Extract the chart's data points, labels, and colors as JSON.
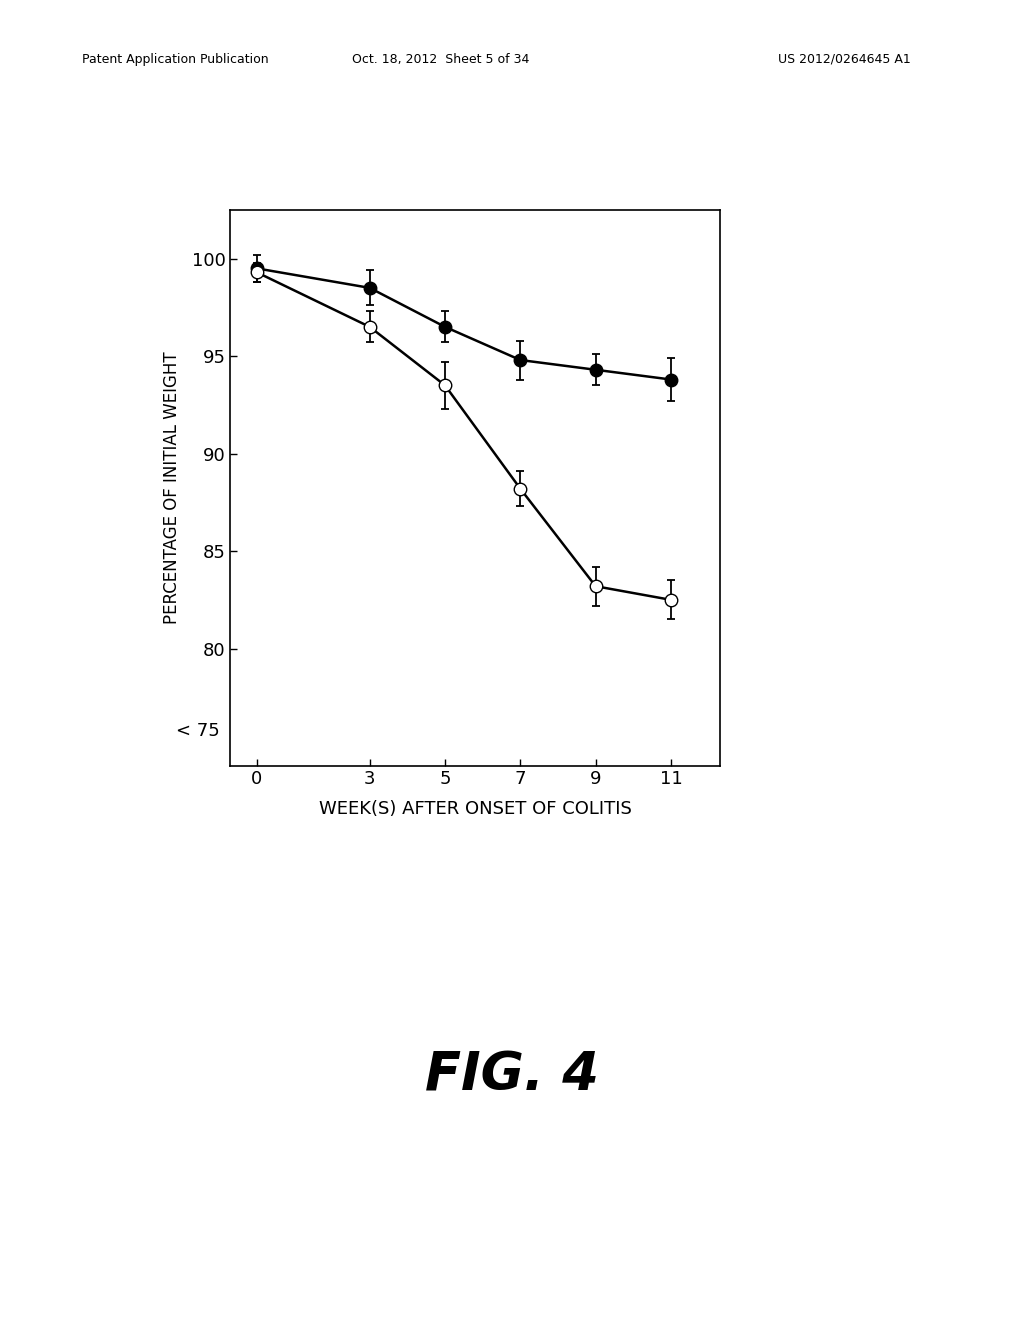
{
  "x": [
    0,
    3,
    5,
    7,
    9,
    11
  ],
  "black_y": [
    99.5,
    98.5,
    96.5,
    94.8,
    94.3,
    93.8
  ],
  "black_err": [
    0.7,
    0.9,
    0.8,
    1.0,
    0.8,
    1.1
  ],
  "open_y": [
    99.3,
    96.5,
    93.5,
    88.2,
    83.2,
    82.5
  ],
  "open_err": [
    0.5,
    0.8,
    1.2,
    0.9,
    1.0,
    1.0
  ],
  "xlabel": "WEEK(S) AFTER ONSET OF COLITIS",
  "ylabel": "PERCENTAGE OF INITIAL WEIGHT",
  "yticks": [
    100,
    95,
    90,
    85,
    80
  ],
  "ytick_labels": [
    "100",
    "95",
    "90",
    "85",
    "80"
  ],
  "ymin": 74.0,
  "ymax": 102.5,
  "xticks": [
    0,
    3,
    5,
    7,
    9,
    11
  ],
  "fig_label": "FIG. 4",
  "header_left": "Patent Application Publication",
  "header_center": "Oct. 18, 2012  Sheet 5 of 34",
  "header_right": "US 2012/0264645 A1",
  "y_extra_tick_label": "< 75",
  "y_extra_tick_val": 75.8,
  "background_color": "#ffffff",
  "line_color": "#000000",
  "marker_size": 9,
  "line_width": 1.8
}
